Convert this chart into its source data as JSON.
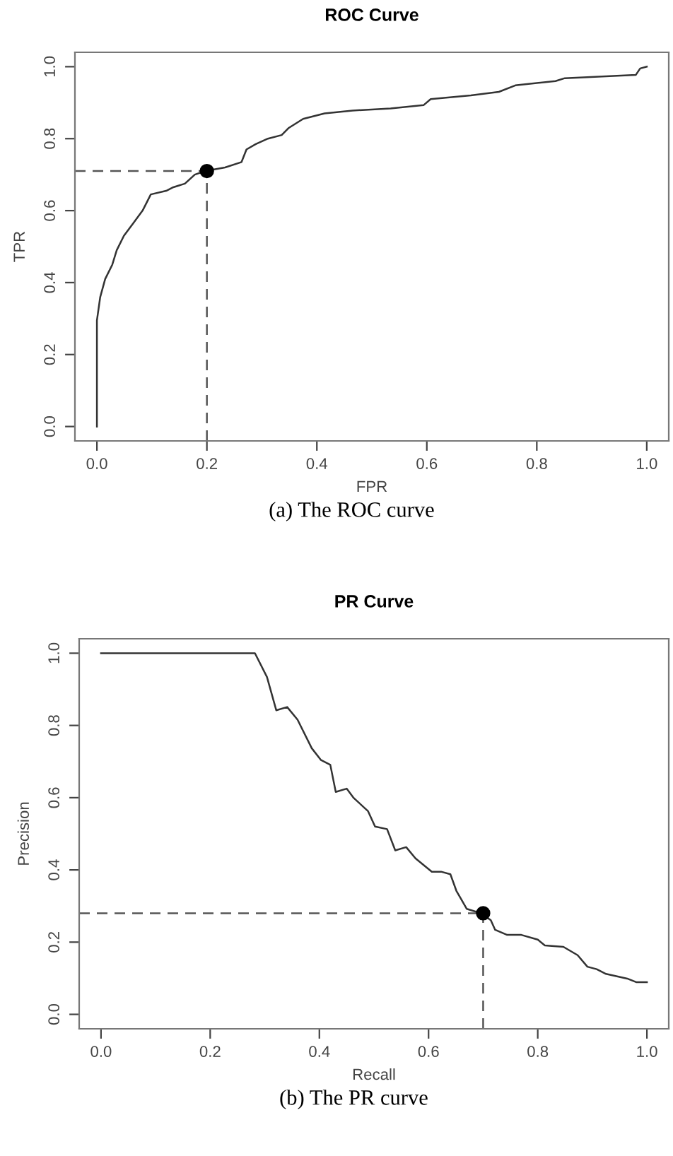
{
  "chart_data": [
    {
      "type": "line",
      "title": "ROC Curve",
      "xlabel": "FPR",
      "ylabel": "TPR",
      "annotations": [
        "(a) The ROC curve"
      ],
      "xlim": [
        -0.04,
        1.04
      ],
      "ylim": [
        -0.04,
        1.04
      ],
      "xticks": [
        {
          "value": 0,
          "label": "0.0"
        },
        {
          "value": 0.2,
          "label": "0.2"
        },
        {
          "value": 0.4,
          "label": "0.4"
        },
        {
          "value": 0.6,
          "label": "0.6"
        },
        {
          "value": 0.8,
          "label": "0.8"
        },
        {
          "value": 1,
          "label": "1.0"
        }
      ],
      "yticks": [
        {
          "value": 0,
          "label": "0.0"
        },
        {
          "value": 0.2,
          "label": "0.2"
        },
        {
          "value": 0.4,
          "label": "0.4"
        },
        {
          "value": 0.6,
          "label": "0.6"
        },
        {
          "value": 0.8,
          "label": "0.8"
        },
        {
          "value": 1,
          "label": "1.0"
        }
      ],
      "grid": false,
      "legend": false,
      "ref_lines": [
        {
          "axis": "x",
          "value": 0.2,
          "color": "#555555",
          "line_style": "dashed"
        },
        {
          "axis": "y",
          "value": 0.71,
          "color": "#555555",
          "line_style": "dashed"
        }
      ],
      "series": [
        {
          "color": "#333333",
          "line_style": "solid",
          "x": [
            0,
            0,
            0.006,
            0.015,
            0.028,
            0.036,
            0.049,
            0.066,
            0.083,
            0.098,
            0.126,
            0.139,
            0.16,
            0.178,
            0.197,
            0.233,
            0.263,
            0.272,
            0.289,
            0.311,
            0.336,
            0.349,
            0.375,
            0.414,
            0.465,
            0.534,
            0.594,
            0.607,
            0.68,
            0.731,
            0.761,
            0.834,
            0.851,
            0.98,
            0.988,
            1
          ],
          "values": [
            0,
            0.295,
            0.36,
            0.41,
            0.45,
            0.49,
            0.53,
            0.565,
            0.6,
            0.645,
            0.655,
            0.665,
            0.675,
            0.7,
            0.71,
            0.72,
            0.735,
            0.77,
            0.785,
            0.8,
            0.81,
            0.83,
            0.855,
            0.87,
            0.878,
            0.884,
            0.893,
            0.91,
            0.92,
            0.93,
            0.948,
            0.96,
            0.968,
            0.977,
            0.995,
            1
          ]
        },
        {
          "type": "scatter",
          "color": "#000000",
          "marker": "circle",
          "x": [
            0.2
          ],
          "values": [
            0.71
          ]
        }
      ]
    },
    {
      "type": "line",
      "title": "PR Curve",
      "xlabel": "Recall",
      "ylabel": "Precision",
      "annotations": [
        "(b) The PR curve"
      ],
      "xlim": [
        -0.04,
        1.04
      ],
      "ylim": [
        -0.04,
        1.04
      ],
      "xticks": [
        {
          "value": 0,
          "label": "0.0"
        },
        {
          "value": 0.2,
          "label": "0.2"
        },
        {
          "value": 0.4,
          "label": "0.4"
        },
        {
          "value": 0.6,
          "label": "0.6"
        },
        {
          "value": 0.8,
          "label": "0.8"
        },
        {
          "value": 1,
          "label": "1.0"
        }
      ],
      "yticks": [
        {
          "value": 0,
          "label": "0.0"
        },
        {
          "value": 0.2,
          "label": "0.2"
        },
        {
          "value": 0.4,
          "label": "0.4"
        },
        {
          "value": 0.6,
          "label": "0.6"
        },
        {
          "value": 0.8,
          "label": "0.8"
        },
        {
          "value": 1,
          "label": "1.0"
        }
      ],
      "grid": false,
      "legend": false,
      "ref_lines": [
        {
          "axis": "x",
          "value": 0.7,
          "color": "#555555",
          "line_style": "dashed"
        },
        {
          "axis": "y",
          "value": 0.28,
          "color": "#555555",
          "line_style": "dashed"
        }
      ],
      "series": [
        {
          "color": "#333333",
          "line_style": "solid",
          "x": [
            0,
            0.282,
            0.304,
            0.321,
            0.341,
            0.36,
            0.386,
            0.403,
            0.42,
            0.43,
            0.45,
            0.463,
            0.489,
            0.502,
            0.524,
            0.539,
            0.559,
            0.576,
            0.606,
            0.623,
            0.64,
            0.651,
            0.67,
            0.696,
            0.714,
            0.722,
            0.744,
            0.77,
            0.8,
            0.813,
            0.847,
            0.873,
            0.891,
            0.908,
            0.925,
            0.964,
            0.981,
            1
          ],
          "values": [
            1,
            1,
            0.934,
            0.842,
            0.851,
            0.816,
            0.737,
            0.704,
            0.691,
            0.616,
            0.625,
            0.599,
            0.563,
            0.52,
            0.513,
            0.454,
            0.463,
            0.432,
            0.395,
            0.395,
            0.388,
            0.342,
            0.292,
            0.28,
            0.261,
            0.234,
            0.22,
            0.22,
            0.207,
            0.191,
            0.187,
            0.164,
            0.132,
            0.125,
            0.112,
            0.099,
            0.089,
            0.089
          ]
        },
        {
          "type": "scatter",
          "color": "#000000",
          "marker": "circle",
          "x": [
            0.7
          ],
          "values": [
            0.28
          ]
        }
      ]
    }
  ]
}
